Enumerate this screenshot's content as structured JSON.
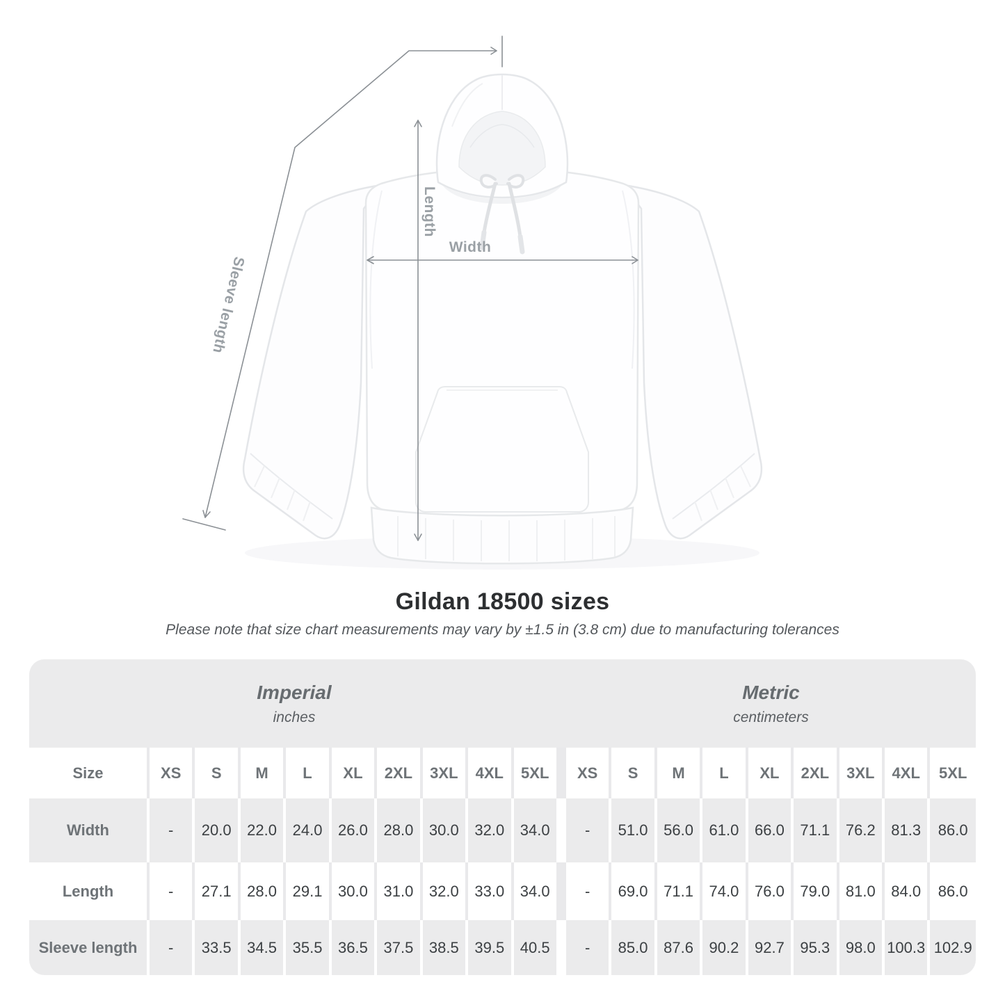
{
  "diagram": {
    "labels": {
      "length": "Length",
      "width": "Width",
      "sleeve": "Sleeve length"
    },
    "line_color": "#8b9095",
    "label_color": "#9aa0a5",
    "garment_color": "#fefefe"
  },
  "heading": {
    "title": "Gildan 18500 sizes",
    "note": "Please note that size chart measurements may vary by ±1.5 in (3.8 cm) due to manufacturing tolerances"
  },
  "table": {
    "groups": [
      {
        "name": "Imperial",
        "unit": "inches"
      },
      {
        "name": "Metric",
        "unit": "centimeters"
      }
    ],
    "size_label": "Size",
    "sizes": [
      "XS",
      "S",
      "M",
      "L",
      "XL",
      "2XL",
      "3XL",
      "4XL",
      "5XL"
    ],
    "rows": [
      {
        "label": "Width",
        "imperial": [
          "-",
          "20.0",
          "22.0",
          "24.0",
          "26.0",
          "28.0",
          "30.0",
          "32.0",
          "34.0"
        ],
        "metric": [
          "-",
          "51.0",
          "56.0",
          "61.0",
          "66.0",
          "71.1",
          "76.2",
          "81.3",
          "86.0"
        ]
      },
      {
        "label": "Length",
        "imperial": [
          "-",
          "27.1",
          "28.0",
          "29.1",
          "30.0",
          "31.0",
          "32.0",
          "33.0",
          "34.0"
        ],
        "metric": [
          "-",
          "69.0",
          "71.1",
          "74.0",
          "76.0",
          "79.0",
          "81.0",
          "84.0",
          "86.0"
        ]
      },
      {
        "label": "Sleeve length",
        "imperial": [
          "-",
          "33.5",
          "34.5",
          "35.5",
          "36.5",
          "37.5",
          "38.5",
          "39.5",
          "40.5"
        ],
        "metric": [
          "-",
          "85.0",
          "87.6",
          "90.2",
          "92.7",
          "95.3",
          "98.0",
          "100.3",
          "102.9"
        ]
      }
    ],
    "colors": {
      "band_bg": "#ebebec",
      "alt_row_bg": "#ebebec",
      "header_text": "#6e7377",
      "value_text": "#3c4043"
    }
  }
}
